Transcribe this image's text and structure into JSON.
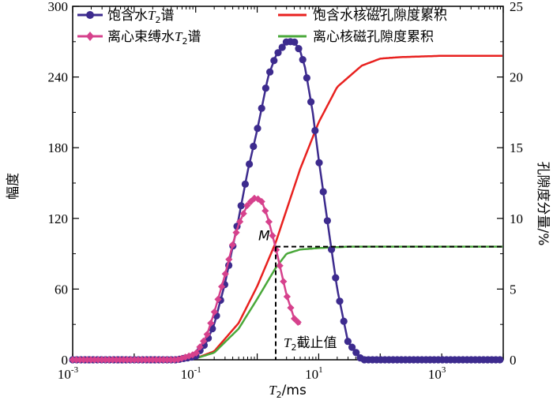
{
  "chart_data": {
    "type": "line",
    "xlabel_main": "T",
    "xlabel_sub": "2",
    "xlabel_unit": "/ms",
    "ylabel_left": "幅度",
    "ylabel_right": "孔隙度分量/%",
    "x_scale": "log",
    "xlim": [
      0.001,
      10000
    ],
    "ylim_left": [
      0,
      300
    ],
    "ylim_right": [
      0,
      25
    ],
    "x_tick_base": "10",
    "x_ticks": [
      {
        "value": 0.001,
        "exp": "-3"
      },
      {
        "value": 0.1,
        "exp": "-1"
      },
      {
        "value": 10,
        "exp": "1"
      },
      {
        "value": 1000,
        "exp": "3"
      }
    ],
    "y_ticks_left": [
      "0",
      "60",
      "120",
      "180",
      "240",
      "300"
    ],
    "y_ticks_right": [
      "0",
      "5",
      "10",
      "15",
      "20",
      "25"
    ],
    "grid": false,
    "legend": [
      {
        "id": "sat",
        "pre": "饱含水",
        "italic": "T",
        "sub": "2",
        "post": "谱",
        "color": "#3d2b8e",
        "marker": "circle"
      },
      {
        "id": "cen",
        "pre": "离心束缚水",
        "italic": "T",
        "sub": "2",
        "post": "谱",
        "color": "#d6418c",
        "marker": "diamond"
      },
      {
        "id": "satcum",
        "text": "饱含水核磁孔隙度累积",
        "color": "#e8211f"
      },
      {
        "id": "cencum",
        "text": "离心核磁孔隙度累积",
        "color": "#4aa83a"
      }
    ],
    "series": [
      {
        "id": "sat",
        "axis": "left",
        "color": "#3d2b8e",
        "marker": "circle",
        "x": [
          0.001,
          0.01,
          0.05,
          0.1,
          0.15,
          0.2,
          0.3,
          0.5,
          0.7,
          1.0,
          1.5,
          2.0,
          3.0,
          4.0,
          5.0,
          6.0,
          8.0,
          10,
          15,
          20,
          30,
          50,
          10000
        ],
        "y": [
          0,
          0,
          0,
          3,
          15,
          30,
          65,
          120,
          160,
          195,
          240,
          258,
          270,
          270,
          262,
          248,
          210,
          170,
          105,
          60,
          15,
          0,
          0
        ]
      },
      {
        "id": "cen",
        "axis": "left",
        "color": "#d6418c",
        "marker": "diamond",
        "x": [
          0.001,
          0.01,
          0.05,
          0.1,
          0.15,
          0.2,
          0.3,
          0.4,
          0.5,
          0.7,
          0.9,
          1.0,
          1.2,
          1.5,
          2.0,
          3.0,
          4.0,
          5.0
        ],
        "y": [
          0,
          0,
          0,
          5,
          20,
          40,
          72,
          98,
          115,
          132,
          137,
          137,
          134,
          120,
          95,
          55,
          35,
          30
        ]
      },
      {
        "id": "satcum",
        "axis": "right",
        "color": "#e8211f",
        "x": [
          0.001,
          0.05,
          0.1,
          0.2,
          0.5,
          1.0,
          2.0,
          5.0,
          10,
          20,
          50,
          100,
          200,
          1000,
          10000
        ],
        "y": [
          0,
          0,
          0.1,
          0.6,
          2.6,
          5.2,
          8.3,
          13.5,
          16.8,
          19.3,
          20.8,
          21.3,
          21.4,
          21.5,
          21.5
        ]
      },
      {
        "id": "cencum",
        "axis": "right",
        "color": "#4aa83a",
        "x": [
          0.001,
          0.05,
          0.1,
          0.2,
          0.5,
          1.0,
          2.0,
          3.0,
          5.0,
          10,
          30,
          100,
          1000,
          10000
        ],
        "y": [
          0,
          0,
          0.1,
          0.5,
          2.2,
          4.3,
          6.5,
          7.5,
          7.8,
          7.9,
          8.0,
          8.0,
          8.0,
          8.0
        ]
      }
    ],
    "annotations": {
      "m_label": "M",
      "m_point": {
        "x": 2.0,
        "y_right": 8.0
      },
      "cutoff_pre": "",
      "cutoff_italic": "T",
      "cutoff_sub": "2",
      "cutoff_post": "截止值"
    }
  }
}
